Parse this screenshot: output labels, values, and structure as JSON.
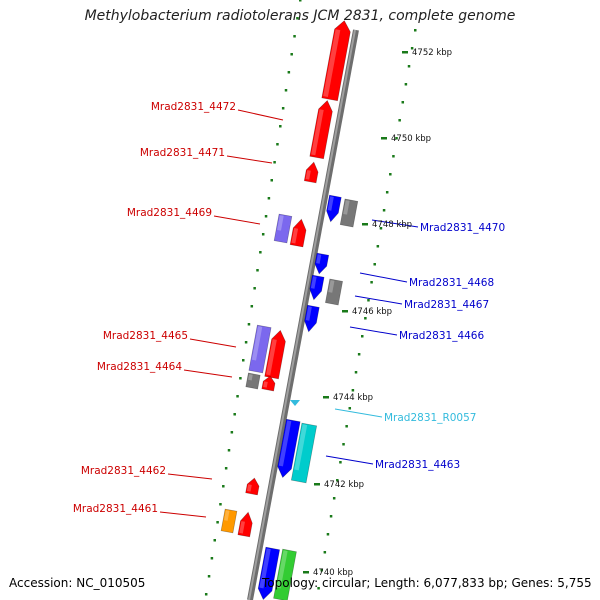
{
  "title": "Methylobacterium radiotolerans JCM 2831, complete genome",
  "footer": {
    "accession": "Accession: NC_010505",
    "stats": "Topology: circular; Length: 6,077,833 bp; Genes: 5,755"
  },
  "colors": {
    "red": "#ff0000",
    "blue": "#0000ff",
    "gray": "#777777",
    "purple": "#7b68ee",
    "cyan": "#00cccc",
    "orange": "#ff9900",
    "green": "#33cc33",
    "label_red": "#cc0000",
    "label_blue": "#0000cc",
    "label_cyan": "#33bbdd",
    "tick_green": "#1a7a1a"
  },
  "ticks": [
    "4752 kbp",
    "4750 kbp",
    "4748 kbp",
    "4746 kbp",
    "4744 kbp",
    "4742 kbp",
    "4740 kbp"
  ],
  "labels": {
    "left": [
      "Mrad2831_4472",
      "Mrad2831_4471",
      "Mrad2831_4469",
      "Mrad2831_4465",
      "Mrad2831_4464",
      "Mrad2831_4462",
      "Mrad2831_4461"
    ],
    "right": [
      "Mrad2831_4470",
      "Mrad2831_4468",
      "Mrad2831_4467",
      "Mrad2831_4466",
      "Mrad2831_R0057",
      "Mrad2831_4463"
    ]
  }
}
